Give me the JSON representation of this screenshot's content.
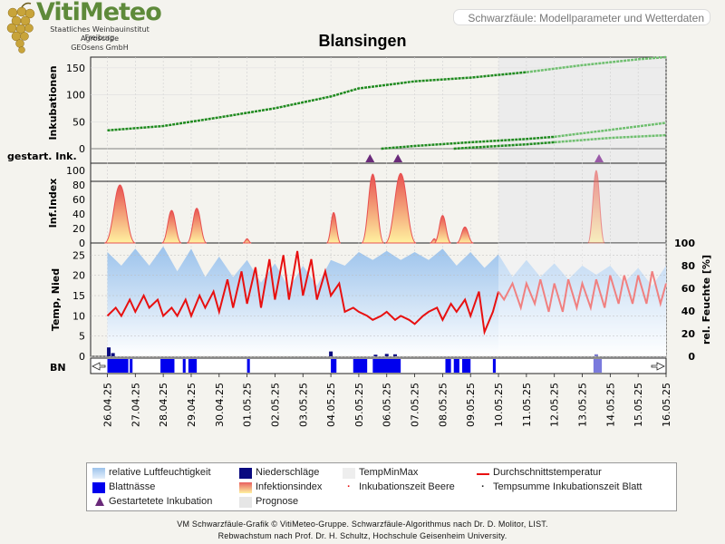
{
  "header": {
    "logo_name": "VitiMeteo",
    "logo_lines": [
      "Staatliches Weinbauinstitut Freiburg",
      "Agroscope",
      "GEOsens GmbH"
    ],
    "badge": "Schwarzfäule: Modellparameter und Wetterdaten",
    "title": "Blansingen"
  },
  "colors": {
    "humidity": "#9cc3ec",
    "temperature": "#e81010",
    "temperature_forecast": "#f08080",
    "precipitation": "#0a0a80",
    "leaf_wetness": "#0000ee",
    "incubation": "#1f8a1f",
    "incubation_forecast": "#6fbf6f",
    "infection_top": "#e85050",
    "infection_bottom": "#fff2a0",
    "forecast_bg": "#ececec",
    "marker": "#6a2a7a"
  },
  "chart_data": {
    "type": "line",
    "x_dates": [
      "26.04.25",
      "27.04.25",
      "28.04.25",
      "29.04.25",
      "30.04.25",
      "01.05.25",
      "02.05.25",
      "03.05.25",
      "04.05.25",
      "05.05.25",
      "06.05.25",
      "07.05.25",
      "08.05.25",
      "09.05.25",
      "10.05.25",
      "11.05.25",
      "12.05.25",
      "13.05.25",
      "14.05.25",
      "15.05.25",
      "16.05.25"
    ],
    "x_range": [
      "25.04.25",
      "16.05.25"
    ],
    "forecast_start": "10.05.25",
    "panels": {
      "incubation": {
        "ylabel": "Inkubationen",
        "ylim": [
          0,
          170
        ],
        "yticks": [
          0,
          50,
          100,
          150
        ],
        "series": [
          {
            "start": 0.0,
            "days": [
              0,
              2,
              4,
              6,
              8,
              9,
              11,
              13,
              15
            ],
            "values": [
              34,
              42,
              58,
              75,
              97,
              112,
              125,
              132,
              142
            ]
          },
          {
            "start": 9.8,
            "days": [
              9.8,
              11,
              13,
              15,
              16
            ],
            "values": [
              0,
              5,
              12,
              18,
              22
            ]
          },
          {
            "start": 12.4,
            "days": [
              12.4,
              13,
              15,
              16
            ],
            "values": [
              0,
              2,
              8,
              12
            ]
          }
        ],
        "forecast_series": [
          {
            "days": [
              15,
              17,
              19,
              20
            ],
            "values": [
              142,
              155,
              166,
              170
            ]
          },
          {
            "days": [
              16,
              18,
              20
            ],
            "values": [
              22,
              35,
              48
            ]
          },
          {
            "days": [
              16,
              18,
              20
            ],
            "values": [
              12,
              20,
              25
            ]
          }
        ]
      },
      "started_incubation": {
        "ylabel": "gestart. Ink.",
        "markers": [
          {
            "date": "04.05.25",
            "day": 9.4
          },
          {
            "date": "05.05.25",
            "day": 10.4
          },
          {
            "date": "13.05.25",
            "day": 17.6
          }
        ]
      },
      "infection_index": {
        "ylabel": "Inf.Index",
        "ylim": [
          0,
          100
        ],
        "yticks": [
          0,
          20,
          40,
          60,
          80,
          100
        ],
        "peaks": [
          {
            "day": 0.45,
            "value": 80,
            "width": 0.55
          },
          {
            "day": 2.3,
            "value": 45,
            "width": 0.35
          },
          {
            "day": 3.2,
            "value": 48,
            "width": 0.35
          },
          {
            "day": 5.0,
            "value": 6,
            "width": 0.15
          },
          {
            "day": 8.1,
            "value": 42,
            "width": 0.25
          },
          {
            "day": 9.5,
            "value": 95,
            "width": 0.4
          },
          {
            "day": 10.5,
            "value": 96,
            "width": 0.55
          },
          {
            "day": 11.7,
            "value": 6,
            "width": 0.15
          },
          {
            "day": 12.0,
            "value": 38,
            "width": 0.3
          },
          {
            "day": 12.8,
            "value": 22,
            "width": 0.3
          },
          {
            "day": 17.5,
            "value": 100,
            "width": 0.3
          }
        ]
      },
      "weather": {
        "ylabel_left": "Temp, Nied",
        "ylabel_right": "rel. Feuchte [%]",
        "ylim_left": [
          0,
          28
        ],
        "yticks_left": [
          0,
          5,
          10,
          15,
          20,
          25
        ],
        "ylim_right": [
          0,
          100
        ],
        "yticks_right": [
          0,
          20,
          40,
          60,
          80,
          100
        ],
        "temperature_mean": [
          [
            0.0,
            10
          ],
          [
            0.3,
            12
          ],
          [
            0.5,
            10
          ],
          [
            0.8,
            14
          ],
          [
            1.0,
            11
          ],
          [
            1.3,
            15
          ],
          [
            1.5,
            12
          ],
          [
            1.8,
            14
          ],
          [
            2.0,
            10
          ],
          [
            2.3,
            12
          ],
          [
            2.5,
            10
          ],
          [
            2.8,
            14
          ],
          [
            3.0,
            10
          ],
          [
            3.3,
            15
          ],
          [
            3.5,
            12
          ],
          [
            3.8,
            16
          ],
          [
            4.0,
            11
          ],
          [
            4.3,
            19
          ],
          [
            4.5,
            12
          ],
          [
            4.8,
            21
          ],
          [
            5.0,
            13
          ],
          [
            5.3,
            22
          ],
          [
            5.5,
            12
          ],
          [
            5.8,
            24
          ],
          [
            6.0,
            14
          ],
          [
            6.3,
            25
          ],
          [
            6.5,
            14
          ],
          [
            6.8,
            26
          ],
          [
            7.0,
            15
          ],
          [
            7.3,
            24
          ],
          [
            7.5,
            14
          ],
          [
            7.8,
            21
          ],
          [
            8.0,
            15
          ],
          [
            8.3,
            18
          ],
          [
            8.5,
            11
          ],
          [
            8.8,
            12
          ],
          [
            9.0,
            11
          ],
          [
            9.3,
            10
          ],
          [
            9.5,
            9
          ],
          [
            9.8,
            10
          ],
          [
            10.0,
            11
          ],
          [
            10.3,
            9
          ],
          [
            10.5,
            10
          ],
          [
            10.8,
            9
          ],
          [
            11.0,
            8
          ],
          [
            11.3,
            10
          ],
          [
            11.5,
            11
          ],
          [
            11.8,
            12
          ],
          [
            12.0,
            9
          ],
          [
            12.3,
            13
          ],
          [
            12.5,
            11
          ],
          [
            12.8,
            14
          ],
          [
            13.0,
            10
          ],
          [
            13.3,
            16
          ],
          [
            13.5,
            6
          ],
          [
            13.8,
            11
          ],
          [
            14.0,
            16
          ]
        ],
        "temperature_forecast": [
          [
            14.0,
            16
          ],
          [
            14.2,
            14
          ],
          [
            14.5,
            18
          ],
          [
            14.8,
            12
          ],
          [
            15.0,
            18
          ],
          [
            15.3,
            13
          ],
          [
            15.5,
            19
          ],
          [
            15.8,
            11
          ],
          [
            16.0,
            18
          ],
          [
            16.3,
            11
          ],
          [
            16.5,
            19
          ],
          [
            16.8,
            12
          ],
          [
            17.0,
            18
          ],
          [
            17.3,
            12
          ],
          [
            17.5,
            19
          ],
          [
            17.8,
            12
          ],
          [
            18.0,
            20
          ],
          [
            18.3,
            13
          ],
          [
            18.5,
            20
          ],
          [
            18.8,
            13
          ],
          [
            19.0,
            20
          ],
          [
            19.3,
            13
          ],
          [
            19.5,
            21
          ],
          [
            19.8,
            13
          ],
          [
            20.0,
            18
          ]
        ],
        "humidity": [
          [
            0.0,
            92
          ],
          [
            0.5,
            80
          ],
          [
            1.0,
            95
          ],
          [
            1.5,
            80
          ],
          [
            2.0,
            97
          ],
          [
            2.5,
            75
          ],
          [
            3.0,
            95
          ],
          [
            3.5,
            70
          ],
          [
            4.0,
            88
          ],
          [
            4.5,
            70
          ],
          [
            5.0,
            85
          ],
          [
            5.5,
            65
          ],
          [
            6.0,
            82
          ],
          [
            6.5,
            60
          ],
          [
            7.0,
            80
          ],
          [
            7.5,
            62
          ],
          [
            8.0,
            85
          ],
          [
            8.5,
            80
          ],
          [
            9.0,
            92
          ],
          [
            9.5,
            85
          ],
          [
            10.0,
            93
          ],
          [
            10.5,
            85
          ],
          [
            11.0,
            92
          ],
          [
            11.5,
            85
          ],
          [
            12.0,
            95
          ],
          [
            12.5,
            80
          ],
          [
            13.0,
            92
          ],
          [
            13.5,
            78
          ],
          [
            14.0,
            90
          ],
          [
            14.5,
            70
          ],
          [
            15.0,
            85
          ],
          [
            15.5,
            70
          ],
          [
            16.0,
            82
          ],
          [
            16.5,
            68
          ],
          [
            17.0,
            80
          ],
          [
            17.5,
            72
          ],
          [
            18.0,
            80
          ],
          [
            18.5,
            65
          ],
          [
            19.0,
            78
          ],
          [
            19.5,
            62
          ],
          [
            20.0,
            80
          ]
        ],
        "precipitation_mm": [
          {
            "day": 0.05,
            "value": 2.2
          },
          {
            "day": 0.2,
            "value": 0.8
          },
          {
            "day": 8.0,
            "value": 1.2
          },
          {
            "day": 9.6,
            "value": 0.4
          },
          {
            "day": 10.0,
            "value": 0.6
          },
          {
            "day": 10.3,
            "value": 0.5
          },
          {
            "day": 17.5,
            "value": 0.5
          }
        ]
      },
      "leaf_wetness": {
        "ylabel": "BN",
        "intervals": [
          [
            0.0,
            0.75
          ],
          [
            0.8,
            0.9
          ],
          [
            1.9,
            2.4
          ],
          [
            2.7,
            2.8
          ],
          [
            2.9,
            3.2
          ],
          [
            5.0,
            5.1
          ],
          [
            8.0,
            8.2
          ],
          [
            8.8,
            9.3
          ],
          [
            9.5,
            10.5
          ],
          [
            12.1,
            12.3
          ],
          [
            12.4,
            12.6
          ],
          [
            12.7,
            13.0
          ],
          [
            13.8,
            13.9
          ]
        ],
        "forecast_intervals": [
          [
            17.4,
            17.7
          ]
        ]
      }
    },
    "legend": [
      {
        "label": "relative Luftfeuchtigkeit",
        "symbol": "humidity"
      },
      {
        "label": "Niederschläge",
        "symbol": "precip"
      },
      {
        "label": "TempMinMax",
        "symbol": "tempminmax"
      },
      {
        "label": "Durchschnittstemperatur",
        "symbol": "tempmean"
      },
      {
        "label": "Blattnässe",
        "symbol": "leafwet"
      },
      {
        "label": "Infektionsindex",
        "symbol": "infection"
      },
      {
        "label": "Inkubationszeit Beere",
        "symbol": "dot-red"
      },
      {
        "label": "Tempsumme Inkubationszeit Blatt",
        "symbol": "dot-dark"
      },
      {
        "label": "Gestartetete Inkubation",
        "symbol": "triangle"
      },
      {
        "label": "Prognose",
        "symbol": "forecast"
      }
    ]
  },
  "footer": {
    "line1": "VM Schwarzfäule-Grafik © VitiMeteo-Gruppe. Schwarzfäule-Algorithmus nach Dr. D. Molitor, LIST.",
    "line2": "Rebwachstum nach Prof. Dr. H. Schultz, Hochschule Geisenheim University."
  }
}
